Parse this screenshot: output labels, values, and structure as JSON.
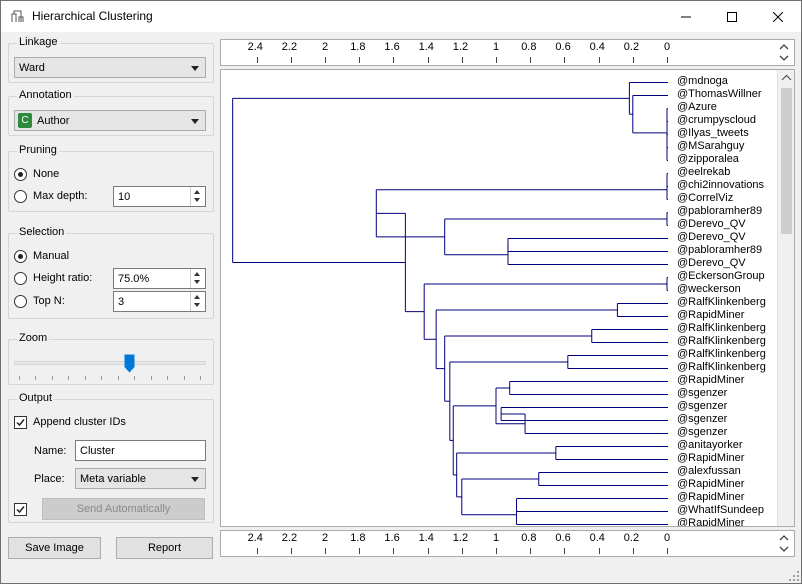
{
  "window": {
    "title": "Hierarchical Clustering"
  },
  "linkage": {
    "title": "Linkage",
    "value": "Ward"
  },
  "annotation": {
    "title": "Annotation",
    "badge": "C",
    "value": "Author",
    "badge_color": "#2e8b3d"
  },
  "pruning": {
    "title": "Pruning",
    "none_label": "None",
    "max_depth_label": "Max depth:",
    "max_depth_value": "10"
  },
  "selection": {
    "title": "Selection",
    "manual_label": "Manual",
    "height_ratio_label": "Height ratio:",
    "height_ratio_value": "75.0%",
    "top_n_label": "Top N:",
    "top_n_value": "3"
  },
  "zoom": {
    "title": "Zoom",
    "level": 0.61
  },
  "output": {
    "title": "Output",
    "append_label": "Append cluster IDs",
    "name_label": "Name:",
    "name_value": "Cluster",
    "place_label": "Place:",
    "place_value": "Meta variable",
    "send_label": "Send Automatically"
  },
  "footer": {
    "save_image": "Save Image",
    "report": "Report"
  },
  "axis_ticks": [
    "2.4",
    "2.2",
    "2",
    "1.8",
    "1.6",
    "1.4",
    "1.2",
    "1",
    "0.8",
    "0.6",
    "0.4",
    "0.2",
    "0"
  ],
  "leaves": [
    "@mdnoga",
    "@ThomasWillner",
    "@Azure",
    "@crumpyscloud",
    "@Ilyas_tweets",
    "@MSarahguy",
    "@zipporalea",
    "@eelrekab",
    "@chi2innovations",
    "@CorrelViz",
    "@pabloramher89",
    "@Derevo_QV",
    "@Derevo_QV",
    "@pabloramher89",
    "@Derevo_QV",
    "@EckersonGroup",
    "@weckerson",
    "@RalfKlinkenberg",
    "@RapidMiner",
    "@RalfKlinkenberg",
    "@RalfKlinkenberg",
    "@RalfKlinkenberg",
    "@RalfKlinkenberg",
    "@RapidMiner",
    "@sgenzer",
    "@sgenzer",
    "@sgenzer",
    "@sgenzer",
    "@anitayorker",
    "@RapidMiner",
    "@alexfussan",
    "@RapidMiner",
    "@RapidMiner",
    "@WhatIfSundeep",
    "@RapidMiner"
  ],
  "colors": {
    "tree": "#00007f",
    "accent": "#0078d7"
  }
}
